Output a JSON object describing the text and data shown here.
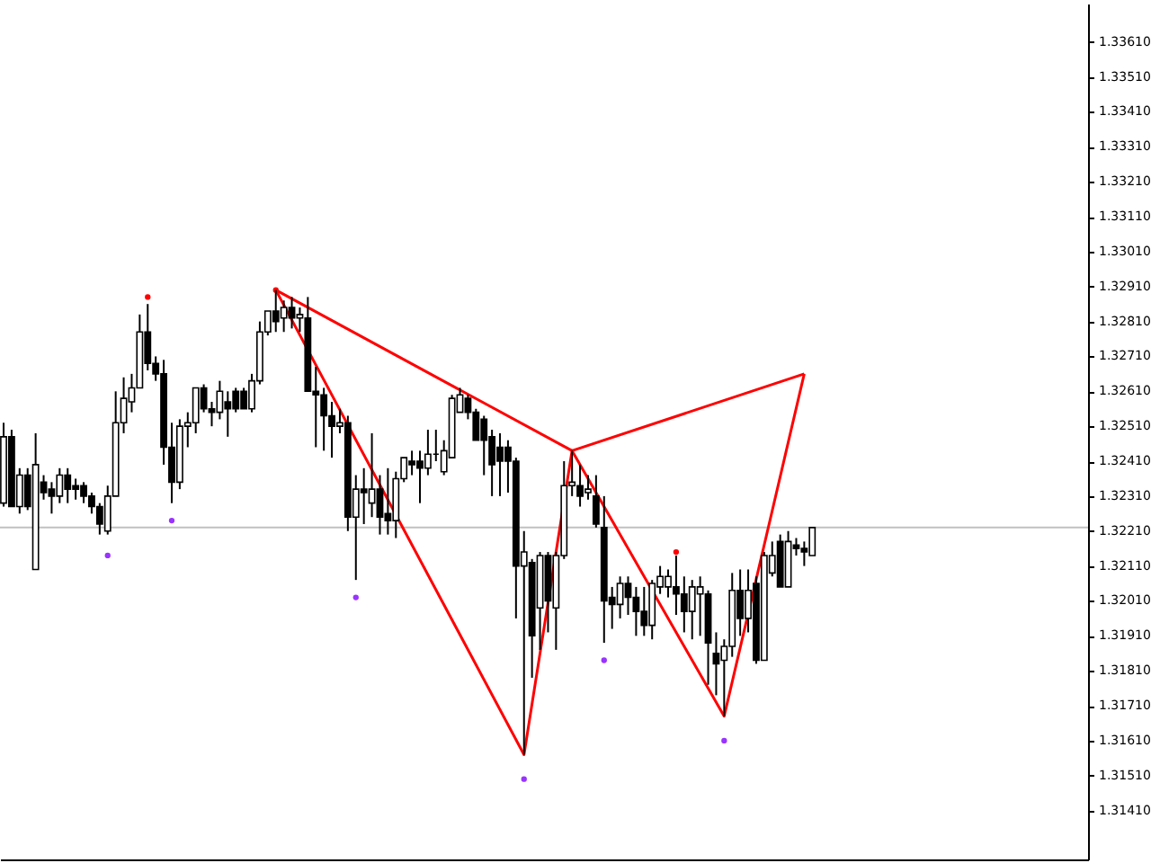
{
  "chart_data": {
    "type": "candlestick",
    "categories": [
      null,
      null,
      null,
      null,
      null,
      null,
      null,
      null,
      null,
      null,
      null,
      null,
      null,
      null,
      null,
      null,
      null,
      null,
      null,
      null,
      null,
      null,
      null,
      null,
      null,
      null,
      null,
      null,
      null,
      null,
      null,
      null,
      null,
      null,
      null,
      null,
      null,
      null,
      null,
      null,
      null,
      null,
      null,
      null,
      null,
      null,
      null,
      null,
      null,
      null,
      null,
      null,
      null,
      null,
      null,
      null,
      null,
      null,
      null,
      null,
      null,
      null,
      null,
      null,
      null,
      null,
      null,
      null,
      null,
      null,
      null,
      null,
      null,
      null,
      null,
      null,
      null,
      null,
      null,
      null,
      null,
      null,
      null,
      null,
      null,
      null,
      null,
      null,
      null,
      null,
      null,
      null,
      null,
      null,
      null,
      null,
      null,
      null,
      null,
      null,
      null,
      null,
      null,
      null,
      null,
      null,
      null,
      null,
      null,
      null,
      null,
      null,
      null,
      null,
      null,
      null,
      null,
      null,
      null,
      null,
      null,
      null,
      null,
      null,
      null,
      null,
      null,
      null,
      null,
      null,
      null,
      null,
      null,
      null,
      null,
      null
    ],
    "ohlc": [
      [
        1.3229,
        1.3252,
        1.3228,
        1.3248
      ],
      [
        1.3248,
        1.325,
        1.3228,
        1.3228
      ],
      [
        1.3228,
        1.3239,
        1.3226,
        1.3237
      ],
      [
        1.3237,
        1.3239,
        1.3227,
        1.3228
      ],
      [
        1.321,
        1.3249,
        1.321,
        1.324
      ],
      [
        1.3235,
        1.3237,
        1.323,
        1.3232
      ],
      [
        1.3233,
        1.3235,
        1.3226,
        1.3231
      ],
      [
        1.3231,
        1.3239,
        1.3229,
        1.3237
      ],
      [
        1.3237,
        1.3239,
        1.3229,
        1.3233
      ],
      [
        1.3234,
        1.3236,
        1.323,
        1.3233
      ],
      [
        1.3234,
        1.3235,
        1.3229,
        1.3231
      ],
      [
        1.3231,
        1.3232,
        1.3226,
        1.3228
      ],
      [
        1.3228,
        1.3229,
        1.322,
        1.3223
      ],
      [
        1.3221,
        1.3234,
        1.322,
        1.3231
      ],
      [
        1.3231,
        1.3261,
        1.3231,
        1.3252
      ],
      [
        1.3252,
        1.3265,
        1.3249,
        1.3259
      ],
      [
        1.3258,
        1.3266,
        1.3255,
        1.3262
      ],
      [
        1.3262,
        1.3283,
        1.3262,
        1.3278
      ],
      [
        1.3278,
        1.3286,
        1.3267,
        1.3269
      ],
      [
        1.3269,
        1.3271,
        1.3264,
        1.3266
      ],
      [
        1.3266,
        1.327,
        1.324,
        1.3245
      ],
      [
        1.3245,
        1.3252,
        1.3229,
        1.3235
      ],
      [
        1.3235,
        1.3253,
        1.3233,
        1.3251
      ],
      [
        1.3251,
        1.3255,
        1.3245,
        1.3252
      ],
      [
        1.3252,
        1.3262,
        1.3249,
        1.3262
      ],
      [
        1.3262,
        1.3263,
        1.3255,
        1.3256
      ],
      [
        1.3256,
        1.3258,
        1.3251,
        1.3255
      ],
      [
        1.3255,
        1.3264,
        1.3253,
        1.3261
      ],
      [
        1.3258,
        1.3261,
        1.3248,
        1.3256
      ],
      [
        1.3261,
        1.3262,
        1.3255,
        1.3256
      ],
      [
        1.3261,
        1.3262,
        1.3256,
        1.3256
      ],
      [
        1.3256,
        1.3266,
        1.3255,
        1.3264
      ],
      [
        1.3264,
        1.3281,
        1.3263,
        1.3278
      ],
      [
        1.3278,
        1.3284,
        1.3277,
        1.3284
      ],
      [
        1.3284,
        1.329,
        1.3278,
        1.3281
      ],
      [
        1.3282,
        1.3287,
        1.3278,
        1.3285
      ],
      [
        1.3285,
        1.3288,
        1.3279,
        1.3282
      ],
      [
        1.3282,
        1.3285,
        1.3278,
        1.3283
      ],
      [
        1.3282,
        1.3288,
        1.3261,
        1.3261
      ],
      [
        1.3261,
        1.3268,
        1.3245,
        1.326
      ],
      [
        1.326,
        1.3262,
        1.3244,
        1.3254
      ],
      [
        1.3254,
        1.3258,
        1.3242,
        1.3251
      ],
      [
        1.3251,
        1.3256,
        1.3249,
        1.3252
      ],
      [
        1.3252,
        1.3254,
        1.3221,
        1.3225
      ],
      [
        1.3225,
        1.3237,
        1.3207,
        1.3233
      ],
      [
        1.3233,
        1.3239,
        1.3223,
        1.3232
      ],
      [
        1.3229,
        1.3249,
        1.3225,
        1.3233
      ],
      [
        1.3233,
        1.3237,
        1.322,
        1.3225
      ],
      [
        1.3226,
        1.3239,
        1.322,
        1.3224
      ],
      [
        1.3224,
        1.3238,
        1.3219,
        1.3236
      ],
      [
        1.3236,
        1.3242,
        1.3235,
        1.3242
      ],
      [
        1.3241,
        1.3244,
        1.3237,
        1.324
      ],
      [
        1.3241,
        1.3244,
        1.3229,
        1.3239
      ],
      [
        1.3239,
        1.325,
        1.3237,
        1.3243
      ],
      [
        1.3243,
        1.325,
        1.3241,
        1.3243
      ],
      [
        1.3238,
        1.3247,
        1.3237,
        1.3244
      ],
      [
        1.3242,
        1.326,
        1.3242,
        1.3259
      ],
      [
        1.3255,
        1.3262,
        1.3255,
        1.326
      ],
      [
        1.3259,
        1.326,
        1.3253,
        1.3255
      ],
      [
        1.3255,
        1.3256,
        1.3247,
        1.3247
      ],
      [
        1.3253,
        1.3254,
        1.3237,
        1.3247
      ],
      [
        1.3248,
        1.325,
        1.3231,
        1.324
      ],
      [
        1.3245,
        1.3249,
        1.3231,
        1.3241
      ],
      [
        1.3245,
        1.3247,
        1.3232,
        1.3241
      ],
      [
        1.3241,
        1.3242,
        1.3196,
        1.3211
      ],
      [
        1.3211,
        1.3221,
        1.3157,
        1.3215
      ],
      [
        1.3212,
        1.3213,
        1.3179,
        1.3191
      ],
      [
        1.3199,
        1.3215,
        1.3187,
        1.3214
      ],
      [
        1.3214,
        1.3215,
        1.3192,
        1.3201
      ],
      [
        1.3199,
        1.3215,
        1.3187,
        1.3214
      ],
      [
        1.3214,
        1.3241,
        1.3213,
        1.3234
      ],
      [
        1.3234,
        1.3244,
        1.3231,
        1.3235
      ],
      [
        1.3234,
        1.324,
        1.3228,
        1.3231
      ],
      [
        1.3232,
        1.3237,
        1.323,
        1.3233
      ],
      [
        1.3231,
        1.3237,
        1.3222,
        1.3223
      ],
      [
        1.3222,
        1.3231,
        1.3189,
        1.3201
      ],
      [
        1.3202,
        1.3205,
        1.3193,
        1.32
      ],
      [
        1.32,
        1.3208,
        1.3196,
        1.3206
      ],
      [
        1.3206,
        1.3208,
        1.3197,
        1.3202
      ],
      [
        1.3202,
        1.3205,
        1.3191,
        1.3198
      ],
      [
        1.3198,
        1.3205,
        1.3191,
        1.3194
      ],
      [
        1.3194,
        1.3207,
        1.319,
        1.3206
      ],
      [
        1.3205,
        1.3211,
        1.3203,
        1.3208
      ],
      [
        1.3205,
        1.321,
        1.3202,
        1.3208
      ],
      [
        1.3205,
        1.3214,
        1.3197,
        1.3203
      ],
      [
        1.3203,
        1.3208,
        1.3192,
        1.3198
      ],
      [
        1.3198,
        1.3207,
        1.319,
        1.3205
      ],
      [
        1.3203,
        1.3208,
        1.3191,
        1.3205
      ],
      [
        1.3203,
        1.3204,
        1.3177,
        1.3189
      ],
      [
        1.3186,
        1.3192,
        1.3174,
        1.3183
      ],
      [
        1.3184,
        1.319,
        1.3168,
        1.3188
      ],
      [
        1.3188,
        1.3209,
        1.3185,
        1.3204
      ],
      [
        1.3204,
        1.321,
        1.3191,
        1.3196
      ],
      [
        1.3196,
        1.321,
        1.3192,
        1.3204
      ],
      [
        1.3206,
        1.3208,
        1.3183,
        1.3184
      ],
      [
        1.3184,
        1.3215,
        1.3184,
        1.3214
      ],
      [
        1.3209,
        1.3218,
        1.3208,
        1.3214
      ],
      [
        1.3218,
        1.322,
        1.3205,
        1.3205
      ],
      [
        1.3205,
        1.3221,
        1.3205,
        1.3218
      ],
      [
        1.3217,
        1.3219,
        1.3214,
        1.3216
      ],
      [
        1.3216,
        1.3218,
        1.3211,
        1.3215
      ],
      [
        1.3214,
        1.3222,
        1.3214,
        1.3222
      ],
      null,
      null,
      null,
      null,
      null,
      null,
      null,
      null,
      null,
      null,
      null,
      null,
      null,
      null,
      null,
      null,
      null,
      null,
      null,
      null,
      null,
      null,
      null,
      null,
      null,
      null,
      null,
      null,
      null,
      null,
      null,
      null,
      null,
      null
    ],
    "color": "#000000",
    "series": [
      {
        "type": "line",
        "marker": "none",
        "color": "#ff0000",
        "values": [
          null,
          null,
          null,
          null,
          null,
          null,
          null,
          null,
          null,
          null,
          null,
          null,
          null,
          null,
          null,
          null,
          null,
          null,
          null,
          null,
          null,
          null,
          null,
          null,
          null,
          null,
          null,
          null,
          null,
          null,
          null,
          null,
          null,
          null,
          1.329,
          null,
          null,
          null,
          null,
          null,
          null,
          null,
          null,
          null,
          null,
          null,
          null,
          null,
          null,
          null,
          null,
          null,
          null,
          null,
          null,
          null,
          null,
          null,
          null,
          null,
          null,
          null,
          null,
          null,
          null,
          1.3157,
          null,
          null,
          null,
          null,
          null,
          1.3244,
          null,
          null,
          null,
          null,
          null,
          null,
          null,
          null,
          null,
          null,
          null,
          null,
          null,
          null,
          null,
          null,
          null,
          null,
          1.3168,
          null,
          null,
          null,
          null,
          null,
          null,
          null,
          null,
          null,
          1.3266,
          null,
          null,
          null,
          null,
          null,
          null,
          null,
          null,
          null,
          null,
          null,
          null,
          null,
          null,
          null,
          null,
          null,
          null,
          null,
          null,
          null,
          null,
          null,
          null,
          null,
          null,
          null,
          null,
          null,
          null,
          null,
          null,
          null,
          null,
          null
        ]
      },
      {
        "type": "line",
        "marker": "none",
        "color": "#ff0000",
        "values": [
          null,
          null,
          null,
          null,
          null,
          null,
          null,
          null,
          null,
          null,
          null,
          null,
          null,
          null,
          null,
          null,
          null,
          null,
          null,
          null,
          null,
          null,
          null,
          null,
          null,
          null,
          null,
          null,
          null,
          null,
          null,
          null,
          null,
          null,
          1.329,
          null,
          null,
          null,
          null,
          null,
          null,
          null,
          null,
          null,
          null,
          null,
          null,
          null,
          null,
          null,
          null,
          null,
          null,
          null,
          null,
          null,
          null,
          null,
          null,
          null,
          null,
          null,
          null,
          null,
          null,
          null,
          null,
          null,
          null,
          null,
          null,
          1.3244,
          null,
          null,
          null,
          null,
          null,
          null,
          null,
          null,
          null,
          null,
          null,
          null,
          null,
          null,
          null,
          null,
          null,
          null,
          null,
          null,
          null,
          null,
          null,
          null,
          null,
          null,
          null,
          null,
          1.3266,
          null,
          null,
          null,
          null,
          null,
          null,
          null,
          null,
          null,
          null,
          null,
          null,
          null,
          null,
          null,
          null,
          null,
          null,
          null,
          null,
          null,
          null,
          null,
          null,
          null,
          null,
          null,
          null,
          null,
          null,
          null,
          null,
          null,
          null,
          null
        ]
      },
      {
        "type": "scatter",
        "marker": "circle",
        "color": "#ff0000",
        "values": [
          null,
          null,
          null,
          null,
          null,
          null,
          null,
          null,
          null,
          null,
          null,
          null,
          null,
          null,
          null,
          null,
          null,
          null,
          1.3288,
          null,
          null,
          null,
          null,
          null,
          null,
          null,
          null,
          null,
          null,
          null,
          null,
          null,
          null,
          null,
          1.329,
          null,
          null,
          null,
          null,
          null,
          null,
          null,
          null,
          null,
          null,
          null,
          null,
          null,
          null,
          null,
          null,
          null,
          null,
          null,
          null,
          null,
          null,
          null,
          null,
          null,
          null,
          null,
          null,
          null,
          null,
          null,
          null,
          null,
          null,
          null,
          null,
          null,
          null,
          null,
          null,
          null,
          null,
          null,
          null,
          null,
          null,
          null,
          null,
          null,
          1.3215,
          null,
          null,
          null,
          null,
          null,
          null,
          null,
          null,
          null,
          null,
          null,
          null,
          null,
          null,
          null,
          null,
          null,
          null,
          null,
          null,
          null,
          null,
          null,
          null,
          null,
          null,
          null,
          null,
          null,
          null,
          null,
          null,
          null,
          null,
          null,
          null,
          null,
          null,
          null,
          null,
          null,
          null,
          null,
          null,
          null,
          null,
          null,
          null,
          null,
          null,
          null
        ]
      },
      {
        "type": "scatter",
        "marker": "circle",
        "color": "#9933ff",
        "values": [
          null,
          null,
          null,
          null,
          null,
          null,
          null,
          null,
          null,
          null,
          null,
          null,
          null,
          1.3214,
          null,
          null,
          null,
          null,
          null,
          null,
          null,
          1.3224,
          null,
          null,
          null,
          null,
          null,
          null,
          null,
          null,
          null,
          null,
          null,
          null,
          null,
          null,
          null,
          null,
          null,
          null,
          null,
          null,
          null,
          null,
          1.3202,
          null,
          null,
          null,
          null,
          null,
          null,
          null,
          null,
          null,
          null,
          null,
          null,
          null,
          null,
          null,
          null,
          null,
          null,
          null,
          null,
          1.315,
          null,
          null,
          null,
          null,
          null,
          null,
          null,
          null,
          null,
          1.3184,
          null,
          null,
          null,
          null,
          null,
          null,
          null,
          null,
          null,
          null,
          null,
          null,
          null,
          null,
          1.3161,
          null,
          null,
          null,
          null,
          null,
          null,
          null,
          null,
          null,
          null,
          null,
          null,
          null,
          null,
          null,
          null,
          null,
          null,
          null,
          null,
          null,
          null,
          null,
          null,
          null,
          null,
          null,
          null,
          null,
          null,
          null,
          null,
          null,
          null,
          null,
          null,
          null,
          null,
          null,
          null,
          null,
          null,
          null,
          null,
          null
        ]
      }
    ],
    "ref_lines": [
      {
        "axis": "y",
        "value": 1.3222,
        "color": "#c0c0c0"
      }
    ],
    "ylim": [
      1.3127,
      1.3372
    ],
    "yticks": [
      {
        "value": 1.3141,
        "label": "1.31410"
      },
      {
        "value": 1.3151,
        "label": "1.31510"
      },
      {
        "value": 1.3161,
        "label": "1.31610"
      },
      {
        "value": 1.3171,
        "label": "1.31710"
      },
      {
        "value": 1.3181,
        "label": "1.31810"
      },
      {
        "value": 1.3191,
        "label": "1.31910"
      },
      {
        "value": 1.3201,
        "label": "1.32010"
      },
      {
        "value": 1.3211,
        "label": "1.32110"
      },
      {
        "value": 1.3221,
        "label": "1.32210"
      },
      {
        "value": 1.3231,
        "label": "1.32310"
      },
      {
        "value": 1.3241,
        "label": "1.32410"
      },
      {
        "value": 1.3251,
        "label": "1.32510"
      },
      {
        "value": 1.3261,
        "label": "1.32610"
      },
      {
        "value": 1.3271,
        "label": "1.32710"
      },
      {
        "value": 1.3281,
        "label": "1.32810"
      },
      {
        "value": 1.3291,
        "label": "1.32910"
      },
      {
        "value": 1.3301,
        "label": "1.33010"
      },
      {
        "value": 1.3311,
        "label": "1.33110"
      },
      {
        "value": 1.3321,
        "label": "1.33210"
      },
      {
        "value": 1.3331,
        "label": "1.33310"
      },
      {
        "value": 1.3341,
        "label": "1.33410"
      },
      {
        "value": 1.3351,
        "label": "1.33510"
      },
      {
        "value": 1.3361,
        "label": "1.33610"
      }
    ],
    "tick_labels": "y",
    "grid": false
  }
}
